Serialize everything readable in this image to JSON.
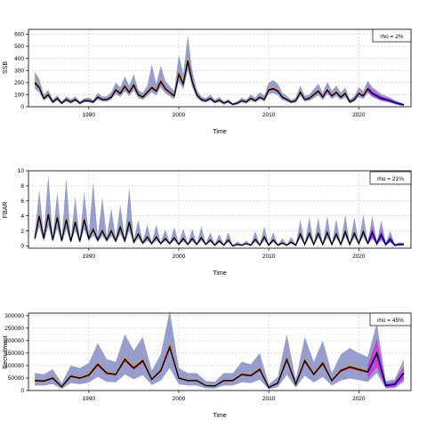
{
  "chart_data": [
    {
      "type": "line",
      "ylabel": "SSB",
      "xlabel": "Time",
      "legend": "rho = 2%",
      "legend_position": "top-right",
      "grid": true,
      "xlim": [
        1983.3,
        2025.8
      ],
      "ylim": [
        0,
        640
      ],
      "xticks": [
        1990,
        2000,
        2010,
        2020
      ],
      "yticks": [
        0,
        100,
        200,
        300,
        400,
        500,
        600
      ],
      "hist_end": 2021,
      "x": [
        1984,
        1984.5,
        1985,
        1985.5,
        1986,
        1986.5,
        1987,
        1987.5,
        1988,
        1988.5,
        1989,
        1989.5,
        1990,
        1990.5,
        1991,
        1991.5,
        1992,
        1992.5,
        1993,
        1993.5,
        1994,
        1994.5,
        1995,
        1995.5,
        1996,
        1996.5,
        1997,
        1997.5,
        1998,
        1998.5,
        1999,
        1999.5,
        2000,
        2000.5,
        2001,
        2001.5,
        2002,
        2002.5,
        2003,
        2003.5,
        2004,
        2004.5,
        2005,
        2005.5,
        2006,
        2006.5,
        2007,
        2007.5,
        2008,
        2008.5,
        2009,
        2009.5,
        2010,
        2010.5,
        2011,
        2011.5,
        2012,
        2012.5,
        2013,
        2013.5,
        2014,
        2014.5,
        2015,
        2015.5,
        2016,
        2016.5,
        2017,
        2017.5,
        2018,
        2018.5,
        2019,
        2019.5,
        2020,
        2020.5,
        2021,
        2021.5,
        2022,
        2022.5,
        2023,
        2023.5,
        2024,
        2024.5,
        2025
      ],
      "series": [
        {
          "role": "median",
          "values": [
            200,
            160,
            70,
            100,
            40,
            70,
            30,
            60,
            40,
            60,
            30,
            50,
            50,
            40,
            80,
            60,
            60,
            80,
            140,
            110,
            170,
            120,
            180,
            100,
            80,
            120,
            160,
            130,
            210,
            150,
            120,
            90,
            270,
            190,
            380,
            210,
            100,
            60,
            50,
            70,
            40,
            55,
            30,
            45,
            20,
            30,
            50,
            40,
            70,
            50,
            80,
            60,
            140,
            150,
            130,
            80,
            60,
            40,
            50,
            120,
            60,
            70,
            100,
            130,
            80,
            140,
            90,
            120,
            80,
            110,
            40,
            60,
            110,
            90,
            150,
            110,
            90,
            70,
            60,
            50,
            35,
            25,
            15
          ]
        },
        {
          "role": "lower",
          "values": [
            150,
            120,
            50,
            75,
            25,
            50,
            18,
            42,
            25,
            42,
            18,
            35,
            35,
            26,
            58,
            42,
            42,
            58,
            105,
            80,
            128,
            88,
            135,
            72,
            56,
            88,
            120,
            95,
            160,
            110,
            86,
            62,
            210,
            142,
            300,
            160,
            72,
            42,
            34,
            50,
            26,
            38,
            18,
            30,
            10,
            18,
            34,
            26,
            50,
            34,
            58,
            42,
            105,
            112,
            96,
            56,
            42,
            26,
            34,
            88,
            42,
            50,
            72,
            96,
            56,
            104,
            64,
            88,
            56,
            80,
            26,
            42,
            80,
            64,
            112,
            80,
            64,
            48,
            40,
            32,
            20,
            12,
            5
          ]
        },
        {
          "role": "upper",
          "values": [
            290,
            230,
            100,
            140,
            60,
            95,
            45,
            85,
            60,
            85,
            45,
            70,
            75,
            58,
            115,
            85,
            85,
            120,
            200,
            160,
            250,
            175,
            270,
            140,
            115,
            175,
            350,
            190,
            340,
            215,
            170,
            130,
            430,
            270,
            590,
            300,
            140,
            85,
            70,
            100,
            58,
            80,
            45,
            65,
            30,
            45,
            75,
            58,
            100,
            75,
            120,
            90,
            200,
            220,
            190,
            115,
            90,
            58,
            75,
            175,
            90,
            100,
            145,
            190,
            115,
            205,
            130,
            175,
            115,
            160,
            60,
            90,
            160,
            130,
            215,
            160,
            135,
            105,
            90,
            75,
            55,
            40,
            25
          ]
        }
      ]
    },
    {
      "type": "line",
      "ylabel": "FBAR",
      "xlabel": "Time",
      "legend": "rho = 21%",
      "legend_position": "top-right",
      "grid": true,
      "xlim": [
        1983.3,
        2025.8
      ],
      "ylim": [
        -0.3,
        10
      ],
      "xticks": [
        1990,
        2000,
        2010,
        2020
      ],
      "yticks": [
        0,
        2,
        4,
        6,
        8,
        10
      ],
      "hist_end": 2021,
      "x": [
        1984,
        1984.5,
        1985,
        1985.5,
        1986,
        1986.5,
        1987,
        1987.5,
        1988,
        1988.5,
        1989,
        1989.5,
        1990,
        1990.5,
        1991,
        1991.5,
        1992,
        1992.5,
        1993,
        1993.5,
        1994,
        1994.5,
        1995,
        1995.5,
        1996,
        1996.5,
        1997,
        1997.5,
        1998,
        1998.5,
        1999,
        1999.5,
        2000,
        2000.5,
        2001,
        2001.5,
        2002,
        2002.5,
        2003,
        2003.5,
        2004,
        2004.5,
        2005,
        2005.5,
        2006,
        2006.5,
        2007,
        2007.5,
        2008,
        2008.5,
        2009,
        2009.5,
        2010,
        2010.5,
        2011,
        2011.5,
        2012,
        2012.5,
        2013,
        2013.5,
        2014,
        2014.5,
        2015,
        2015.5,
        2016,
        2016.5,
        2017,
        2017.5,
        2018,
        2018.5,
        2019,
        2019.5,
        2020,
        2020.5,
        2021,
        2021.5,
        2022,
        2022.5,
        2023,
        2023.5,
        2024,
        2024.5,
        2025
      ],
      "series": [
        {
          "role": "median",
          "values": [
            1.0,
            4.0,
            1.0,
            4.2,
            0.8,
            3.8,
            0.7,
            3.5,
            0.6,
            3.2,
            0.6,
            3.5,
            1.0,
            2.2,
            0.8,
            2.0,
            0.8,
            2.0,
            0.7,
            2.5,
            0.7,
            3.2,
            0.5,
            1.6,
            0.4,
            1.2,
            0.3,
            1.2,
            0.3,
            1.0,
            0.3,
            1.1,
            0.2,
            1.0,
            0.2,
            1.0,
            0.2,
            1.1,
            0.2,
            0.8,
            0.1,
            0.7,
            0.1,
            0.8,
            0.0,
            0.2,
            0.1,
            0.3,
            0.1,
            0.9,
            0.1,
            1.2,
            0.1,
            0.8,
            0.1,
            0.4,
            0.1,
            0.5,
            0.1,
            1.6,
            0.2,
            1.7,
            0.2,
            1.7,
            0.2,
            1.8,
            0.2,
            1.6,
            0.2,
            1.9,
            0.2,
            1.7,
            0.3,
            1.9,
            0.3,
            1.8,
            0.3,
            1.5,
            0.2,
            0.9,
            0.1,
            0.2,
            0.2
          ]
        },
        {
          "role": "lower",
          "values": [
            0.6,
            2.5,
            0.6,
            2.6,
            0.5,
            2.4,
            0.4,
            2.2,
            0.4,
            2.0,
            0.4,
            2.2,
            0.6,
            1.4,
            0.5,
            1.3,
            0.5,
            1.3,
            0.4,
            1.6,
            0.4,
            2.0,
            0.3,
            1.0,
            0.2,
            0.7,
            0.2,
            0.7,
            0.2,
            0.6,
            0.2,
            0.7,
            0.1,
            0.6,
            0.1,
            0.6,
            0.1,
            0.7,
            0.1,
            0.5,
            0.0,
            0.4,
            0.0,
            0.5,
            0.0,
            0.1,
            0.0,
            0.2,
            0.0,
            0.5,
            0.0,
            0.7,
            0.0,
            0.5,
            0.0,
            0.2,
            0.0,
            0.3,
            0.0,
            1.0,
            0.1,
            1.1,
            0.1,
            1.1,
            0.1,
            1.1,
            0.1,
            1.0,
            0.1,
            1.2,
            0.1,
            1.1,
            0.2,
            1.2,
            0.2,
            1.1,
            0.2,
            0.9,
            0.1,
            0.5,
            0.0,
            0.1,
            0.1
          ]
        },
        {
          "role": "upper",
          "values": [
            1.6,
            7.5,
            1.5,
            9.5,
            1.2,
            7.2,
            1.0,
            9.0,
            0.9,
            6.5,
            0.9,
            7.2,
            1.6,
            8.5,
            1.2,
            6.5,
            1.2,
            5.0,
            1.0,
            5.5,
            1.0,
            7.8,
            0.8,
            3.5,
            0.6,
            2.8,
            0.5,
            2.8,
            0.5,
            2.2,
            0.5,
            2.5,
            0.4,
            2.3,
            0.3,
            2.3,
            0.3,
            2.6,
            0.3,
            1.8,
            0.2,
            1.6,
            0.2,
            1.8,
            0.1,
            0.6,
            0.2,
            0.7,
            0.2,
            2.0,
            0.2,
            2.6,
            0.2,
            1.8,
            0.2,
            1.0,
            0.2,
            1.2,
            0.2,
            3.5,
            0.3,
            3.8,
            0.3,
            3.8,
            0.3,
            4.0,
            0.3,
            3.6,
            0.3,
            4.2,
            0.3,
            3.8,
            0.5,
            4.2,
            0.5,
            4.0,
            0.5,
            3.4,
            0.4,
            2.0,
            0.2,
            0.5,
            0.4
          ]
        }
      ]
    },
    {
      "type": "line",
      "ylabel": "Recruitment",
      "xlabel": "Time",
      "legend": "rho = 45%",
      "legend_position": "top-right",
      "grid": true,
      "xlim": [
        1983.3,
        2025.8
      ],
      "ylim": [
        0,
        310000
      ],
      "xticks": [
        1990,
        2000,
        2010,
        2020
      ],
      "yticks": [
        0,
        50000,
        100000,
        150000,
        200000,
        250000,
        300000
      ],
      "hist_end": 2021,
      "x": [
        1984,
        1985,
        1986,
        1987,
        1988,
        1989,
        1990,
        1991,
        1992,
        1993,
        1994,
        1995,
        1996,
        1997,
        1998,
        1999,
        2000,
        2001,
        2002,
        2003,
        2004,
        2005,
        2006,
        2007,
        2008,
        2009,
        2010,
        2011,
        2012,
        2013,
        2014,
        2015,
        2016,
        2017,
        2018,
        2019,
        2020,
        2021,
        2022,
        2023,
        2024,
        2025
      ],
      "series": [
        {
          "role": "median",
          "values": [
            40000,
            38000,
            50000,
            15000,
            58000,
            50000,
            62000,
            105000,
            70000,
            65000,
            125000,
            90000,
            120000,
            45000,
            80000,
            175000,
            50000,
            40000,
            40000,
            20000,
            18000,
            40000,
            40000,
            65000,
            60000,
            85000,
            12000,
            30000,
            125000,
            25000,
            120000,
            65000,
            110000,
            40000,
            80000,
            95000,
            85000,
            75000,
            150000,
            20000,
            25000,
            70000
          ]
        },
        {
          "role": "lower",
          "values": [
            20000,
            20000,
            26000,
            6000,
            30000,
            25000,
            32000,
            55000,
            35000,
            33000,
            64000,
            45000,
            62000,
            22000,
            40000,
            90000,
            25000,
            20000,
            20000,
            9000,
            8000,
            20000,
            20000,
            33000,
            30000,
            43000,
            5000,
            14000,
            63000,
            12000,
            60000,
            32000,
            55000,
            20000,
            40000,
            48000,
            42000,
            35000,
            70000,
            8000,
            10000,
            35000
          ]
        },
        {
          "role": "upper",
          "values": [
            70000,
            65000,
            85000,
            30000,
            100000,
            90000,
            110000,
            190000,
            125000,
            115000,
            225000,
            160000,
            215000,
            80000,
            145000,
            320000,
            90000,
            70000,
            70000,
            38000,
            35000,
            70000,
            70000,
            115000,
            105000,
            150000,
            25000,
            55000,
            225000,
            45000,
            215000,
            115000,
            200000,
            70000,
            145000,
            170000,
            150000,
            135000,
            270000,
            38000,
            45000,
            125000
          ]
        }
      ]
    }
  ],
  "colors": {
    "band": "#8c92c8",
    "grid": "#c8c8c8",
    "median_hist": "#000000",
    "median_proj": "#00008b",
    "iter_a": "#ff8c00",
    "iter_b": "#cc0000",
    "iter_c": "#3a9bd6",
    "proj_band": "#cc33cc"
  }
}
